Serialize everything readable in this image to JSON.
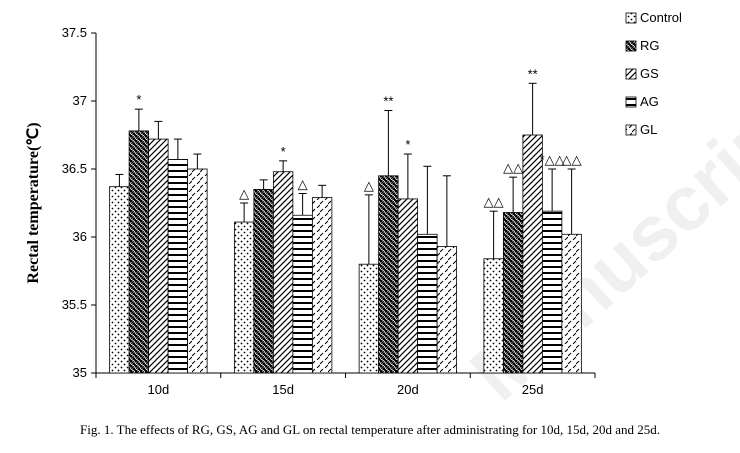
{
  "chart_data": {
    "type": "bar",
    "title": "",
    "xlabel": "",
    "ylabel": "Rectal temperature(℃)",
    "ylim": [
      35,
      37.5
    ],
    "yticks": [
      "35",
      "35.5",
      "36",
      "36.5",
      "37",
      "37.5"
    ],
    "categories": [
      "10d",
      "15d",
      "20d",
      "25d"
    ],
    "legend_position": "top-right",
    "grid": false,
    "series": [
      {
        "name": "Control",
        "pattern": "dots",
        "values": [
          36.37,
          36.11,
          35.8,
          35.84
        ],
        "errors": [
          0.09,
          0.14,
          0.51,
          0.35
        ]
      },
      {
        "name": "RG",
        "pattern": "crosshatch",
        "values": [
          36.78,
          36.35,
          36.45,
          36.18
        ],
        "errors": [
          0.16,
          0.07,
          0.48,
          0.26
        ]
      },
      {
        "name": "GS",
        "pattern": "diagonal",
        "values": [
          36.72,
          36.48,
          36.28,
          36.75
        ],
        "errors": [
          0.13,
          0.08,
          0.33,
          0.38
        ]
      },
      {
        "name": "AG",
        "pattern": "horizontal",
        "values": [
          36.57,
          36.16,
          36.02,
          36.19
        ],
        "errors": [
          0.15,
          0.16,
          0.5,
          0.31
        ]
      },
      {
        "name": "GL",
        "pattern": "dashed",
        "values": [
          36.5,
          36.29,
          35.93,
          36.02
        ],
        "errors": [
          0.11,
          0.09,
          0.52,
          0.48
        ]
      }
    ],
    "annotations": [
      {
        "category": 0,
        "series": 1,
        "text": "*"
      },
      {
        "category": 1,
        "series": 0,
        "text": "△"
      },
      {
        "category": 1,
        "series": 2,
        "text": "*"
      },
      {
        "category": 1,
        "series": 3,
        "text": "△"
      },
      {
        "category": 2,
        "series": 0,
        "text": "△"
      },
      {
        "category": 2,
        "series": 1,
        "text": "**"
      },
      {
        "category": 2,
        "series": 2,
        "text": "*"
      },
      {
        "category": 3,
        "series": 0,
        "text": "△△"
      },
      {
        "category": 3,
        "series": 1,
        "text": "△△"
      },
      {
        "category": 3,
        "series": 2,
        "text": "**"
      },
      {
        "category": 3,
        "series": 3,
        "text": "*△△"
      },
      {
        "category": 3,
        "series": 4,
        "text": "△△"
      }
    ]
  },
  "caption": "Fig. 1. The effects of RG, GS, AG and GL on rectal temperature after administrating for 10d, 15d, 20d and 25d.",
  "watermark": "Manuscript"
}
